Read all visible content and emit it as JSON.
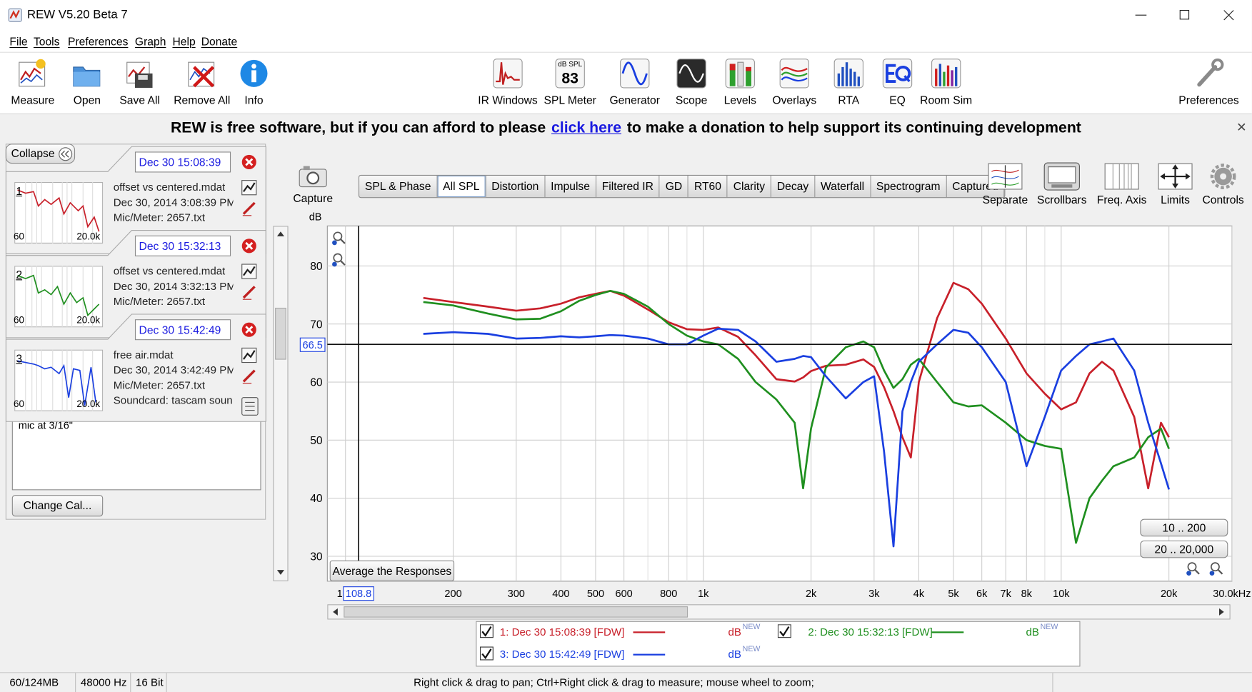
{
  "window": {
    "title": "REW V5.20 Beta 7"
  },
  "menu": [
    "File",
    "Tools",
    "Preferences",
    "Graph",
    "Help",
    "Donate"
  ],
  "toolbar_left": [
    "Measure",
    "Open",
    "Save All",
    "Remove All",
    "Info"
  ],
  "toolbar_center": [
    "IR Windows",
    "SPL Meter",
    "Generator",
    "Scope",
    "Levels",
    "Overlays",
    "RTA",
    "EQ",
    "Room Sim"
  ],
  "toolbar_right": [
    "Preferences"
  ],
  "spl_icon": {
    "unit": "dB SPL",
    "reading": "83"
  },
  "banner": {
    "before": "REW is free software, but if you can afford to please",
    "link": "click here",
    "after": "to make a donation to help support its continuing development"
  },
  "panel": {
    "collapse": "Collapse",
    "measurements": [
      {
        "time": "Dec 30 15:08:39",
        "index": "1",
        "file": "offset vs centered.mdat",
        "date": "Dec 30, 2014 3:08:39 PM",
        "mic": "Mic/Meter: 2657.txt",
        "thumb_min": "60",
        "thumb_max": "20.0k"
      },
      {
        "time": "Dec 30 15:32:13",
        "index": "2",
        "file": "offset vs centered.mdat",
        "date": "Dec 30, 2014 3:32:13 PM",
        "mic": "Mic/Meter: 2657.txt",
        "thumb_min": "60",
        "thumb_max": "20.0k"
      },
      {
        "time": "Dec 30 15:42:49",
        "index": "3",
        "file": "free air.mdat",
        "date": "Dec 30, 2014 3:42:49 PM",
        "mic": "Mic/Meter: 2657.txt",
        "sound": "Soundcard: tascam soun",
        "thumb_min": "60",
        "thumb_max": "20.0k"
      }
    ],
    "notes": "mic at 3/16\"",
    "change_cal": "Change Cal..."
  },
  "capture": "Capture",
  "graph_tabs": [
    "SPL & Phase",
    "All SPL",
    "Distortion",
    "Impulse",
    "Filtered IR",
    "GD",
    "RT60",
    "Clarity",
    "Decay",
    "Waterfall",
    "Spectrogram",
    "Captured"
  ],
  "active_tab": 1,
  "graph_tools": [
    "Separate",
    "Scrollbars",
    "Freq. Axis",
    "Limits",
    "Controls"
  ],
  "chart_data": {
    "type": "line",
    "ylabel": "dB",
    "xscale": "log",
    "grid": true,
    "xlim": [
      89,
      30000
    ],
    "ylim": [
      25.7,
      86.9
    ],
    "xticks": [
      {
        "value": 100,
        "label": "1"
      },
      200,
      300,
      400,
      500,
      600,
      800,
      {
        "value": 1000,
        "label": "1k"
      },
      {
        "value": 2000,
        "label": "2k"
      },
      {
        "value": 3000,
        "label": "3k"
      },
      {
        "value": 4000,
        "label": "4k"
      },
      {
        "value": 5000,
        "label": "5k"
      },
      {
        "value": 6000,
        "label": "6k"
      },
      {
        "value": 7000,
        "label": "7k"
      },
      {
        "value": 8000,
        "label": "8k"
      },
      {
        "value": 10000,
        "label": "10k"
      },
      {
        "value": 20000,
        "label": "20k"
      },
      {
        "value": 30000,
        "label": "30.0kHz"
      }
    ],
    "xminor": [
      700,
      900,
      9000
    ],
    "yticks": [
      30,
      40,
      50,
      60,
      70,
      80
    ],
    "cursor": {
      "x": 108.8,
      "y": 66.5
    },
    "x": [
      165,
      200,
      250,
      300,
      350,
      400,
      450,
      500,
      550,
      600,
      700,
      800,
      900,
      1000,
      1100,
      1250,
      1400,
      1600,
      1800,
      1900,
      2000,
      2200,
      2500,
      2800,
      3000,
      3200,
      3400,
      3600,
      3800,
      4000,
      4500,
      5000,
      5500,
      6000,
      7000,
      8000,
      9000,
      10000,
      11000,
      12000,
      13000,
      14000,
      16000,
      17500,
      19000,
      20000
    ],
    "series": [
      {
        "name": "1: Dec 30 15:08:39 [FDW]",
        "color": "#c8202a",
        "unit": "dB",
        "tag": "NEW",
        "values": [
          74.5,
          73.8,
          73.0,
          72.3,
          72.7,
          73.5,
          74.6,
          75.2,
          75.7,
          74.9,
          72.5,
          70.3,
          69.1,
          69.0,
          69.4,
          67.8,
          64.6,
          60.5,
          60.1,
          60.8,
          61.9,
          62.8,
          63.0,
          63.9,
          62.6,
          59.1,
          55.0,
          50.5,
          47.0,
          60.0,
          71.0,
          77.1,
          76.0,
          73.5,
          67.5,
          61.5,
          58.0,
          55.3,
          56.5,
          61.5,
          63.5,
          62.0,
          54.0,
          41.7,
          53.0,
          50.5
        ]
      },
      {
        "name": "2: Dec 30 15:32:13 [FDW]",
        "color": "#1f8f1f",
        "unit": "dB",
        "tag": "NEW",
        "values": [
          73.8,
          73.2,
          71.8,
          70.8,
          70.9,
          72.2,
          74.0,
          75.0,
          75.7,
          75.2,
          73.0,
          70.0,
          68.0,
          67.0,
          66.5,
          64.0,
          60.0,
          57.0,
          53.0,
          41.7,
          52.0,
          62.5,
          66.0,
          67.0,
          66.0,
          62.0,
          59.0,
          60.5,
          63.0,
          64.0,
          60.0,
          56.5,
          55.8,
          56.0,
          53.0,
          50.0,
          49.0,
          48.5,
          32.3,
          40.0,
          43.0,
          45.5,
          47.0,
          50.5,
          52.0,
          48.5
        ]
      },
      {
        "name": "3: Dec 30 15:42:49 [FDW]",
        "color": "#1a3fe0",
        "unit": "dB",
        "tag": "NEW",
        "values": [
          68.3,
          68.6,
          68.3,
          67.5,
          67.6,
          67.9,
          67.7,
          67.9,
          68.1,
          68.0,
          67.5,
          66.5,
          66.5,
          68.0,
          69.2,
          69.0,
          67.0,
          63.5,
          64.0,
          64.5,
          64.3,
          61.0,
          57.2,
          60.0,
          61.0,
          48.0,
          31.7,
          55.0,
          60.0,
          63.5,
          66.5,
          69.0,
          68.5,
          66.0,
          60.0,
          45.5,
          54.0,
          62.0,
          64.5,
          66.5,
          67.0,
          67.5,
          62.0,
          53.0,
          46.0,
          41.5
        ]
      }
    ],
    "average_button": "Average the Responses",
    "range_buttons": [
      "10 .. 200",
      "20 .. 20,000"
    ]
  },
  "status": [
    "60/124MB",
    "48000 Hz",
    "16 Bit",
    "Right click & drag to pan; Ctrl+Right click & drag to measure; mouse wheel to zoom;"
  ]
}
